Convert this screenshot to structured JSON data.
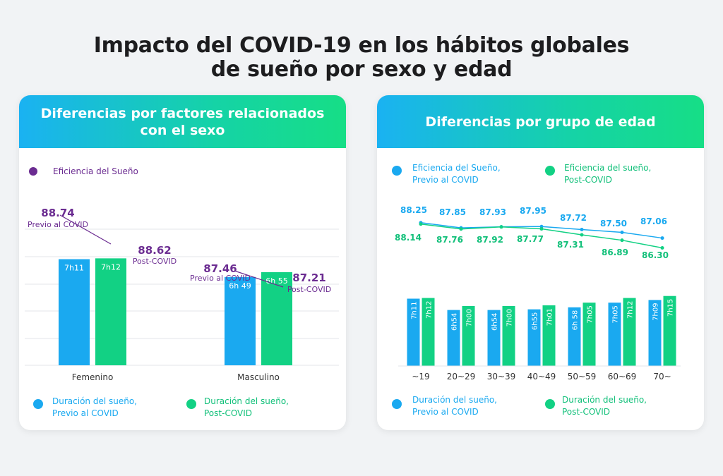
{
  "title": {
    "line1": "Impacto del COVID-19 en los hábitos globales",
    "line2": "de sueño por sexo y edad"
  },
  "colors": {
    "blue": "#1aa9f0",
    "green": "#12d184",
    "purple": "#6b2c91",
    "grid": "#e3e5e8",
    "axis_text": "#333333"
  },
  "left_panel": {
    "header_line1": "Diferencias por factores relacionados",
    "header_line2": "con el sexo",
    "efficiency_legend": "Eficiencia del Sueño",
    "legend_blue_line1": "Duración del sueño,",
    "legend_blue_line2": "Previo al COVID",
    "legend_green_line1": "Duración del sueño,",
    "legend_green_line2": "Post-COVID"
  },
  "right_panel": {
    "header": "Diferencias por grupo de edad",
    "legend_eff_blue_line1": "Eficiencia del Sueño,",
    "legend_eff_blue_line2": "Previo al COVID",
    "legend_eff_green_line1": "Eficiencia del sueño,",
    "legend_eff_green_line2": "Post-COVID",
    "legend_blue_line1": "Duración del sueño,",
    "legend_blue_line2": "Previo al COVID",
    "legend_green_line1": "Duración del sueño,",
    "legend_green_line2": "Post-COVID"
  },
  "chart_data": [
    {
      "type": "bar",
      "categories": [
        "Femenino",
        "Masculino"
      ],
      "series": [
        {
          "name": "Duración del sueño, Previo al COVID",
          "values_minutes": [
            431,
            409
          ],
          "labels": [
            "7h11",
            "6h 49"
          ]
        },
        {
          "name": "Duración del sueño, Post-COVID",
          "values_minutes": [
            432,
            415
          ],
          "labels": [
            "7h12",
            "6h 55"
          ]
        }
      ],
      "efficiency": {
        "name": "Eficiencia del Sueño",
        "points": [
          {
            "category": "Femenino",
            "pre": 88.74,
            "post": 88.62,
            "pre_label": "Previo al COVID",
            "post_label": "Post-COVID"
          },
          {
            "category": "Masculino",
            "pre": 87.46,
            "post": 87.21,
            "pre_label": "Previo al COVID",
            "post_label": "Post-COVID"
          }
        ]
      }
    },
    {
      "type": "bar",
      "categories": [
        "~19",
        "20~29",
        "30~39",
        "40~49",
        "50~59",
        "60~69",
        "70~"
      ],
      "series": [
        {
          "name": "Duración del sueño, Previo al COVID",
          "values_minutes": [
            431,
            414,
            414,
            415,
            418,
            425,
            429
          ],
          "labels": [
            "7h11",
            "6h54",
            "6h54",
            "6h55",
            "6h 58",
            "7h05",
            "7h09"
          ]
        },
        {
          "name": "Duración del sueño, Post-COVID",
          "values_minutes": [
            432,
            420,
            420,
            421,
            425,
            432,
            435
          ],
          "labels": [
            "7h12",
            "7h00",
            "7h00",
            "7h01",
            "7h05",
            "7h12",
            "7h15"
          ]
        }
      ],
      "efficiency_series": [
        {
          "name": "Eficiencia del Sueño, Previo al COVID",
          "values": [
            88.25,
            87.85,
            87.93,
            87.95,
            87.72,
            87.5,
            87.06
          ],
          "labels": [
            "88.25",
            "87.85",
            "87.93",
            "87.95",
            "87.72",
            "87.50",
            "87.06"
          ]
        },
        {
          "name": "Eficiencia del sueño, Post-COVID",
          "values": [
            88.14,
            87.76,
            87.92,
            87.77,
            87.31,
            86.89,
            86.3
          ],
          "labels": [
            "88.14",
            "87.76",
            "87.92",
            "87.77",
            "87.31",
            "86.89",
            "86.30"
          ]
        }
      ]
    }
  ]
}
